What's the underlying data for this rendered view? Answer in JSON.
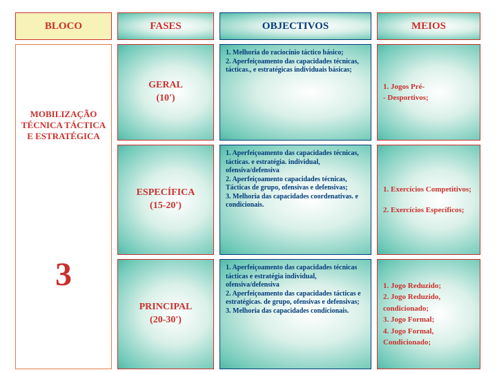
{
  "colors": {
    "red": "#c9302c",
    "blue": "#003a7a",
    "orange": "#e07b3c",
    "cream": "#f7f2b8",
    "white": "#ffffff"
  },
  "header": {
    "bloco": "BLOCO",
    "fases": "FASES",
    "objectivos": "OBJECTIVOS",
    "meios": "MEIOS"
  },
  "col1": {
    "title": "MOBILIZAÇÃO TÉCNICA TÁCTICA E ESTRATÉGICA",
    "number": "3"
  },
  "rows": [
    {
      "fase": "GERAL\n(10')",
      "obj": "1. Melhoria do raciocínio táctico básico;\n2. Aperfeiçoamento das capacidades técnicas, tácticas., e estratégicas individuais básicas;",
      "meios": [
        "1. Jogos Pré-",
        "- Desportivos;"
      ]
    },
    {
      "fase": "ESPECÍFICA\n(15-20')",
      "obj": "1. Aperfeiçoamento das capacidades técnicas, tácticas. e estratégia. individual, ofensiva/defensiva\n2. Aperfeiçoamento capacidades técnicas, Tácticas de grupo, ofensivas e defensivas;\n3. Melhoria das capacidades coordenativas. e condicionais.",
      "meios": [
        "1. Exercícios Competitivos;",
        "2. Exercícios Específicos;"
      ]
    },
    {
      "fase": "PRINCIPAL\n(20-30')",
      "obj": "1. Aperfeiçoamento das capacidades técnicas tácticas e estratégia individual, ofensiva/defensiva\n2. Aperfeiçoamento das capacidades tácticas e estratégicas. de grupo, ofensivas e defensivas;\n3. Melhoria das capacidades condicionais.",
      "meios": [
        "1. Jogo Reduzido;",
        "2. Jogo Reduzido, condicionado;",
        "3. Jogo Formal;",
        "4. Jogo Formal, Condicionado;"
      ]
    }
  ]
}
